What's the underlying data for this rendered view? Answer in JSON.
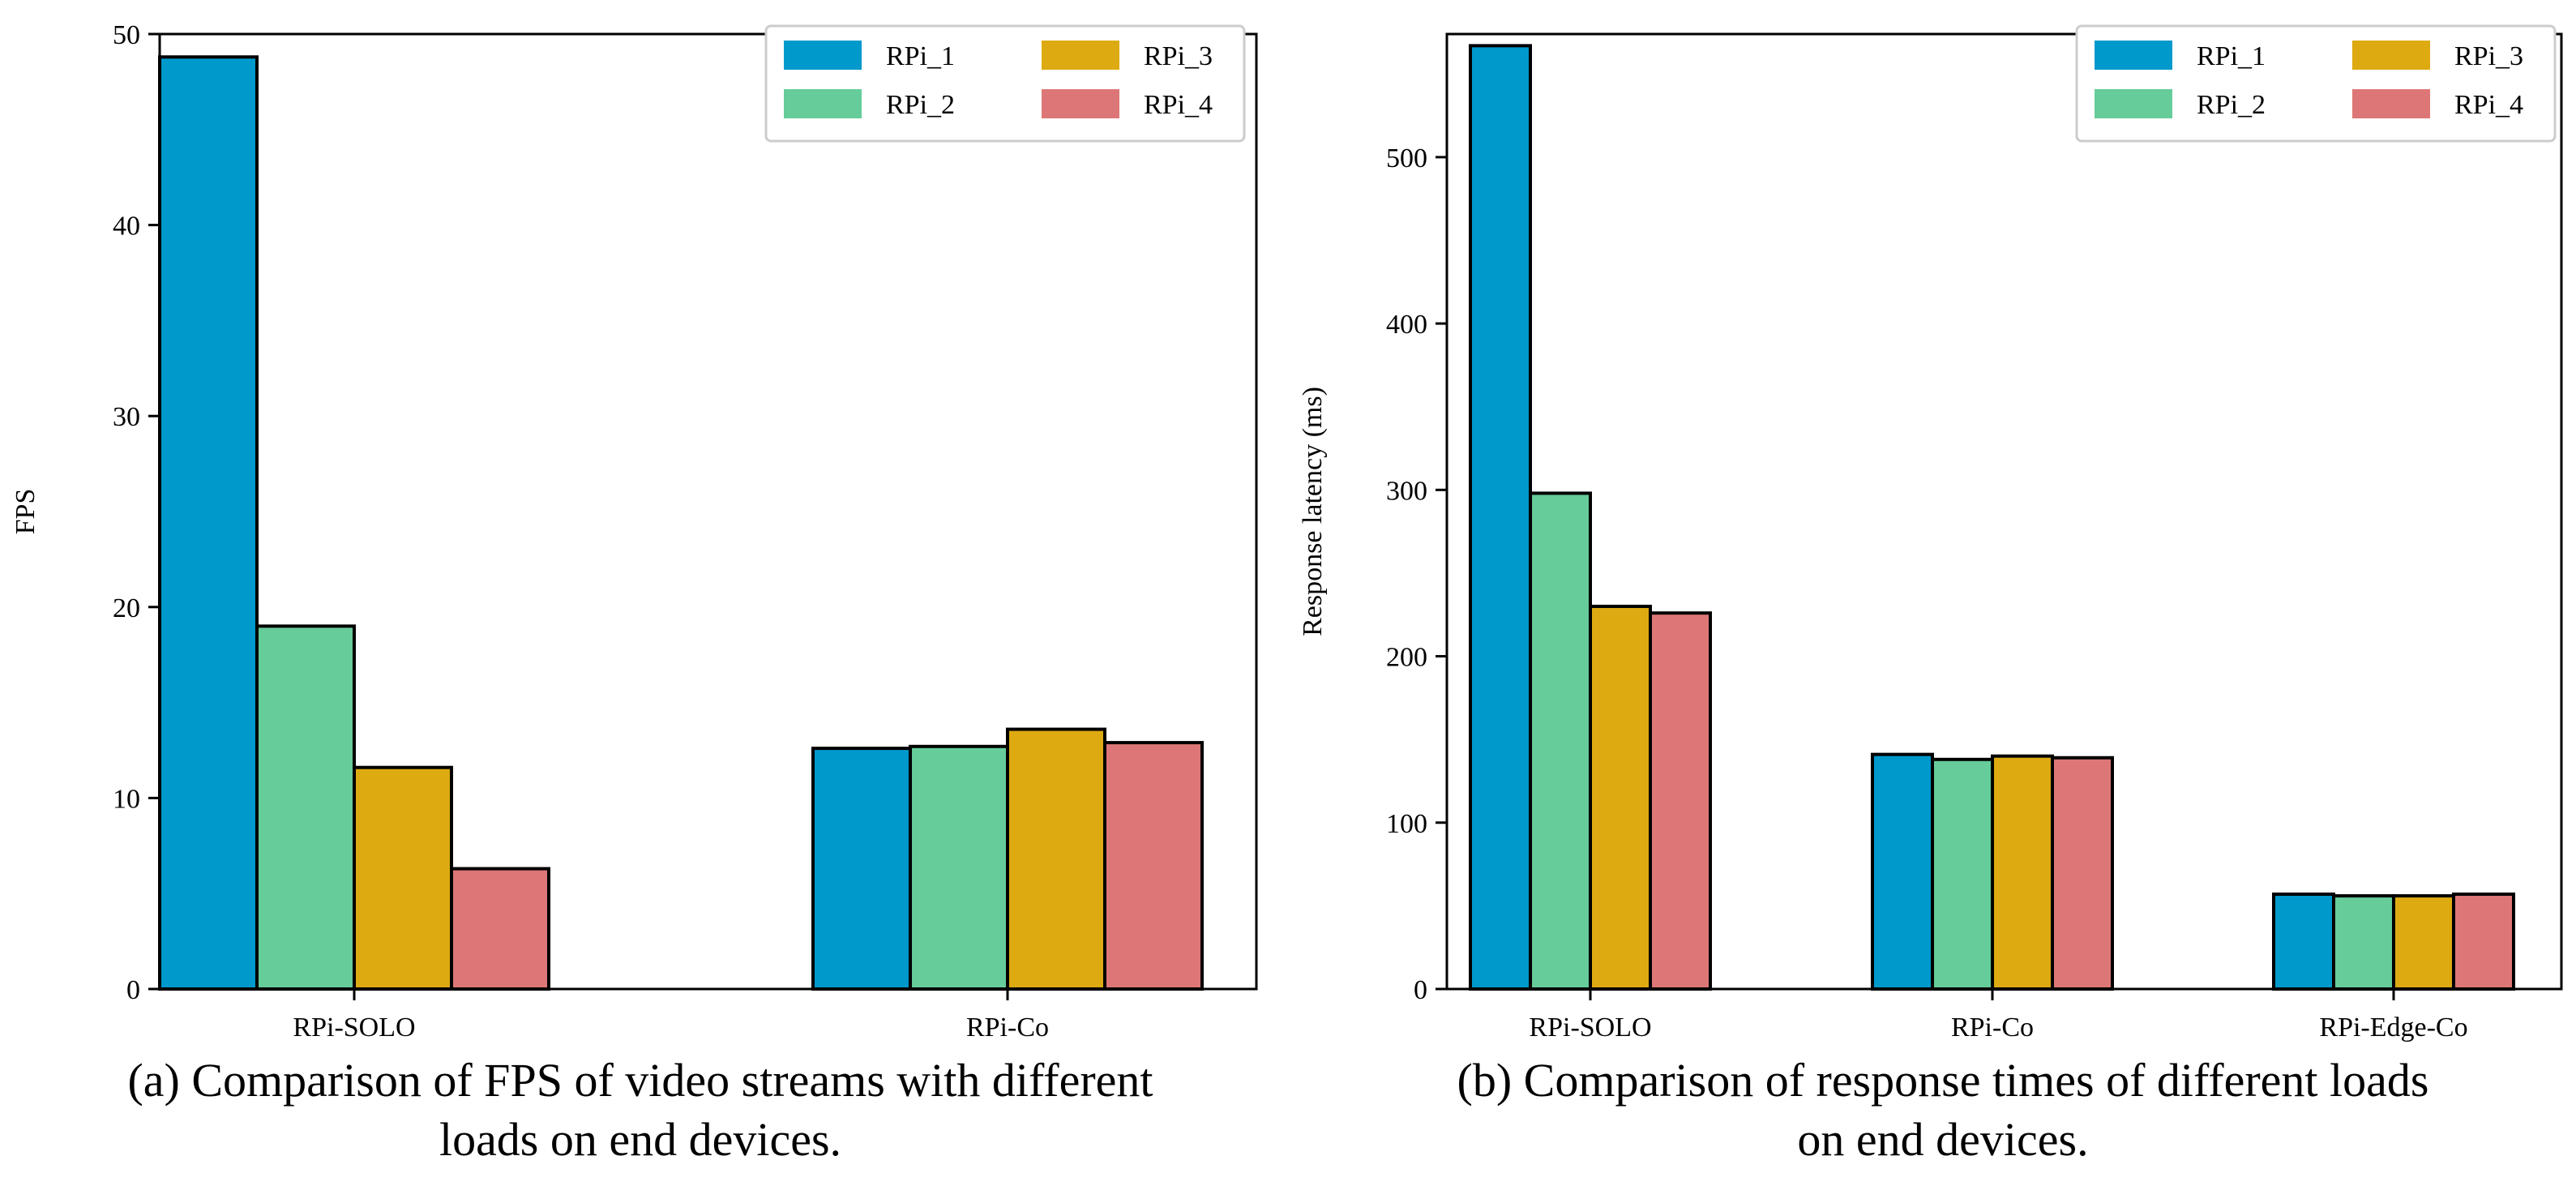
{
  "chart_data": [
    {
      "type": "bar",
      "title": "",
      "xlabel": "",
      "ylabel": "FPS",
      "ylim": [
        0,
        50
      ],
      "yticks": [
        "0",
        "10",
        "20",
        "30",
        "40",
        "50"
      ],
      "categories": [
        "RPi-SOLO",
        "RPi-Co"
      ],
      "series": [
        {
          "name": "RPi_1",
          "color": "#0099cc",
          "values": [
            48.8,
            12.6
          ]
        },
        {
          "name": "RPi_2",
          "color": "#66cc99",
          "values": [
            19.0,
            12.7
          ]
        },
        {
          "name": "RPi_3",
          "color": "#ddaa11",
          "values": [
            11.6,
            13.6
          ]
        },
        {
          "name": "RPi_4",
          "color": "#dd7777",
          "values": [
            6.3,
            12.9
          ]
        }
      ],
      "legend": "top-right",
      "caption_lines": [
        "(a) Comparison of FPS of video streams with different",
        "loads on end devices."
      ]
    },
    {
      "type": "bar",
      "title": "",
      "xlabel": "",
      "ylabel": "Response latency (ms)",
      "ylim": [
        0,
        574
      ],
      "yticks": [
        "0",
        "100",
        "200",
        "300",
        "400",
        "500"
      ],
      "categories": [
        "RPi-SOLO",
        "RPi-Co",
        "RPi-Edge-Co"
      ],
      "series": [
        {
          "name": "RPi_1",
          "color": "#0099cc",
          "values": [
            567,
            141,
            57
          ]
        },
        {
          "name": "RPi_2",
          "color": "#66cc99",
          "values": [
            298,
            138,
            56
          ]
        },
        {
          "name": "RPi_3",
          "color": "#ddaa11",
          "values": [
            230,
            140,
            56
          ]
        },
        {
          "name": "RPi_4",
          "color": "#dd7777",
          "values": [
            226,
            139,
            57
          ]
        }
      ],
      "legend": "top-right",
      "caption_lines": [
        "(b) Comparison of response times of different loads",
        "on end devices."
      ]
    }
  ]
}
